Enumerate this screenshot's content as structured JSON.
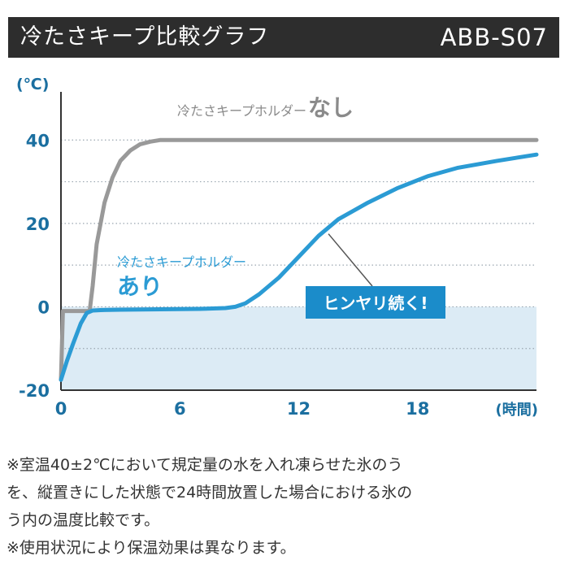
{
  "header": {
    "title": "冷たさキープ比較グラフ",
    "model": "ABB-S07"
  },
  "chart_data": {
    "type": "line",
    "title": "冷たさキープ比較グラフ",
    "xlabel": "(時間)",
    "ylabel": "(℃)",
    "xlim": [
      0,
      24
    ],
    "ylim": [
      -20,
      50
    ],
    "xticks": [
      "0",
      "6",
      "12",
      "18"
    ],
    "yticks": [
      "-20",
      "0",
      "20",
      "40"
    ],
    "grid": true,
    "shaded_region": {
      "y_from": -20,
      "y_to": 0,
      "color": "#dcebf5"
    },
    "series": [
      {
        "name": "冷たさキープホルダーなし",
        "color": "#999999",
        "x": [
          0,
          0.1,
          0.2,
          0.6,
          1.2,
          1.4,
          1.45,
          1.6,
          1.8,
          2.2,
          2.6,
          3.0,
          3.5,
          4.0,
          4.5,
          5.0,
          5.5,
          6.0,
          7.0,
          9.0,
          12.0,
          15.0,
          18.0,
          21.0,
          24.0
        ],
        "y": [
          -17.5,
          -1,
          -1,
          -1,
          -1,
          -1,
          -1,
          5,
          15,
          25,
          31,
          35,
          37.5,
          39,
          39.6,
          40,
          40,
          40,
          40,
          40,
          40,
          40,
          40,
          40,
          40
        ]
      },
      {
        "name": "冷たさキープホルダーあり",
        "color": "#2b9bd4",
        "x": [
          0,
          0.3,
          0.6,
          1.0,
          1.3,
          1.6,
          2.0,
          3.0,
          5.0,
          7.0,
          8.3,
          8.8,
          9.3,
          10.0,
          11.0,
          12.0,
          13.0,
          14.0,
          15.5,
          17.0,
          18.5,
          20.0,
          22.0,
          24.0
        ],
        "y": [
          -17.5,
          -13,
          -9,
          -4,
          -1.5,
          -0.9,
          -0.8,
          -0.7,
          -0.6,
          -0.5,
          -0.3,
          0,
          0.8,
          3,
          7,
          12,
          17,
          21,
          25,
          28.5,
          31.3,
          33.3,
          35,
          36.5
        ]
      }
    ],
    "annotations": [
      {
        "text": "冷たさキープホルダー",
        "emphasis": "なし",
        "color": "#8a8a8a"
      },
      {
        "text": "冷たさキープホルダー",
        "emphasis": "あり",
        "color": "#2b9bd4"
      },
      {
        "text": "ヒンヤリ続く!",
        "style": "callout",
        "color": "#1b8cca",
        "points_to": {
          "x": 13.5,
          "y": 17.5
        }
      }
    ]
  },
  "notes": [
    "※室温40±2℃において規定量の水を入れ凍らせた氷のう",
    "を、縦置きにした状態で24時間放置した場合における氷の",
    "う内の温度比較です。",
    "※使用状況により保温効果は異なります。"
  ]
}
